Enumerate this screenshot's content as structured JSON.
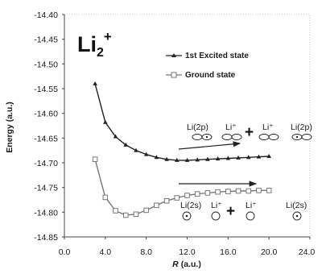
{
  "chart_data": {
    "type": "line",
    "title": "Li2+",
    "title_main": "Li",
    "title_sub": "2",
    "title_sup": "+",
    "xlabel_italic": "R",
    "xlabel_unit": "(a.u.)",
    "ylabel": "Energy (a.u.)",
    "xlim": [
      0,
      24
    ],
    "ylim": [
      -14.85,
      -14.4
    ],
    "x_ticks": [
      "0.0",
      "4.0",
      "8.0",
      "12.0",
      "16.0",
      "20.0",
      "24.0"
    ],
    "x_tick_values": [
      0,
      4,
      8,
      12,
      16,
      20,
      24
    ],
    "y_ticks": [
      "-14.40",
      "-14.45",
      "-14.50",
      "-14.55",
      "-14.60",
      "-14.65",
      "-14.70",
      "-14.75",
      "-14.80",
      "-14.85"
    ],
    "y_tick_values": [
      -14.4,
      -14.45,
      -14.5,
      -14.55,
      -14.6,
      -14.65,
      -14.7,
      -14.75,
      -14.8,
      -14.85
    ],
    "grid": false,
    "legend_position": "upper-right",
    "series": [
      {
        "name": "1st Excited state",
        "marker": "triangle",
        "color": "#222222",
        "x": [
          3,
          4,
          5,
          6,
          7,
          8,
          9,
          10,
          11,
          12,
          13,
          14,
          15,
          16,
          17,
          18,
          19,
          20
        ],
        "y": [
          -14.54,
          -14.618,
          -14.647,
          -14.664,
          -14.675,
          -14.683,
          -14.689,
          -14.693,
          -14.695,
          -14.695,
          -14.694,
          -14.693,
          -14.692,
          -14.691,
          -14.69,
          -14.689,
          -14.688,
          -14.687
        ]
      },
      {
        "name": "Ground state",
        "marker": "square",
        "color": "#777777",
        "x": [
          3,
          4,
          5,
          6,
          7,
          8,
          9,
          10,
          11,
          12,
          13,
          14,
          15,
          16,
          17,
          18,
          19,
          20
        ],
        "y": [
          -14.693,
          -14.77,
          -14.797,
          -14.806,
          -14.804,
          -14.796,
          -14.786,
          -14.777,
          -14.771,
          -14.766,
          -14.763,
          -14.761,
          -14.759,
          -14.758,
          -14.757,
          -14.757,
          -14.756,
          -14.756
        ]
      }
    ],
    "annotations": {
      "excited": {
        "left": "Li(2p)",
        "mid_left": "Li⁺",
        "plus": "+",
        "mid_right": "Li⁺",
        "right": "Li(2p)"
      },
      "ground": {
        "left": "Li(2s)",
        "mid_left": "Li⁺",
        "plus": "+",
        "mid_right": "Li⁺",
        "right": "Li(2s)"
      }
    }
  }
}
